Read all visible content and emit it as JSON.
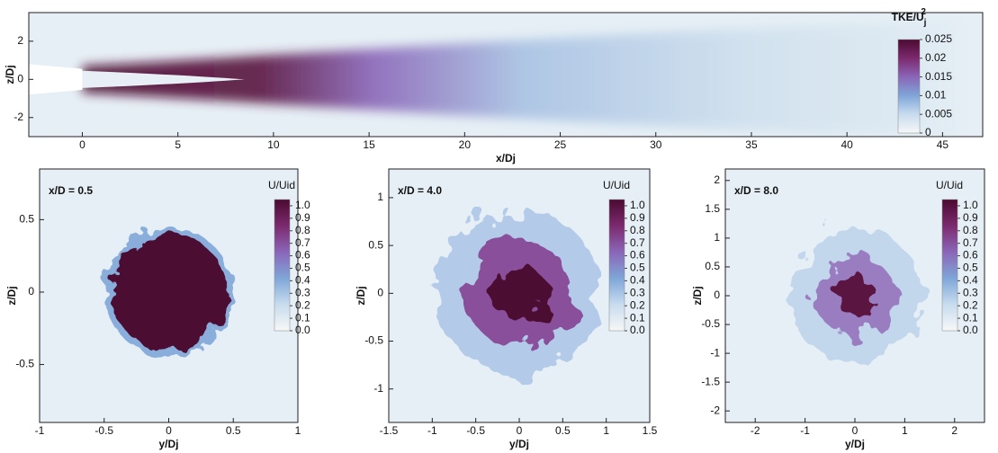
{
  "chart_data": [
    {
      "type": "contour",
      "xlabel": "x/Dj",
      "ylabel": "z/Dj",
      "xlim": [
        -2.8,
        47.1
      ],
      "ylim": [
        -3,
        3.5
      ],
      "xticks": [
        0,
        5,
        10,
        15,
        20,
        25,
        30,
        35,
        40,
        45
      ],
      "yticks": [
        -2,
        0,
        2
      ],
      "colorbar": {
        "title": "TKE/U",
        "title_sub": "j",
        "title_sup": "2",
        "lim": [
          0,
          0.025
        ],
        "ticks": [
          0,
          0.005,
          0.01,
          0.015,
          0.02,
          0.025
        ]
      }
    },
    {
      "type": "contour",
      "annotation": "x/D = 0.5",
      "xlabel": "y/Dj",
      "ylabel": "z/Dj",
      "xlim": [
        -1,
        1
      ],
      "ylim": [
        -0.9,
        0.85
      ],
      "xticks": [
        -1,
        -0.5,
        0,
        0.5,
        1
      ],
      "yticks": [
        -0.5,
        0,
        0.5
      ],
      "colorbar": {
        "title": "U/Uid",
        "lim": [
          0,
          1.05
        ],
        "ticks": [
          {
            "value": 0,
            "label": "0.0"
          },
          0.1,
          0.2,
          0.3,
          0.4,
          0.5,
          0.6,
          0.7,
          0.8,
          0.9,
          {
            "value": 1,
            "label": "1.0"
          }
        ]
      }
    },
    {
      "type": "contour",
      "annotation": "x/D = 4.0",
      "xlabel": "y/Dj",
      "ylabel": "z/Dj",
      "xlim": [
        -1.5,
        1.5
      ],
      "ylim": [
        -1.35,
        1.3
      ],
      "xticks": [
        -1.5,
        -1,
        -0.5,
        0,
        0.5,
        1,
        1.5
      ],
      "yticks": [
        -1,
        -0.5,
        0,
        0.5,
        1
      ],
      "colorbar": {
        "title": "U/Uid",
        "lim": [
          0,
          1.05
        ],
        "ticks": [
          {
            "value": 0,
            "label": "0.0"
          },
          0.1,
          0.2,
          0.3,
          0.4,
          0.5,
          0.6,
          0.7,
          0.8,
          0.9,
          {
            "value": 1,
            "label": "1.0"
          }
        ]
      }
    },
    {
      "type": "contour",
      "annotation": "x/D = 8.0",
      "xlabel": "y/Dj",
      "ylabel": "z/Dj",
      "xlim": [
        -2.6,
        2.6
      ],
      "ylim": [
        -2.2,
        2.2
      ],
      "xticks": [
        -2,
        -1,
        0,
        1,
        2
      ],
      "yticks": [
        -2,
        -1.5,
        -1,
        -0.5,
        0,
        0.5,
        1,
        1.5,
        2
      ],
      "colorbar": {
        "title": "U/Uid",
        "lim": [
          0,
          1.05
        ],
        "ticks": [
          {
            "value": 0,
            "label": "0.0"
          },
          0.1,
          0.2,
          0.3,
          0.4,
          0.5,
          0.6,
          0.7,
          0.8,
          0.9,
          {
            "value": 1,
            "label": "1.0"
          }
        ]
      }
    }
  ]
}
